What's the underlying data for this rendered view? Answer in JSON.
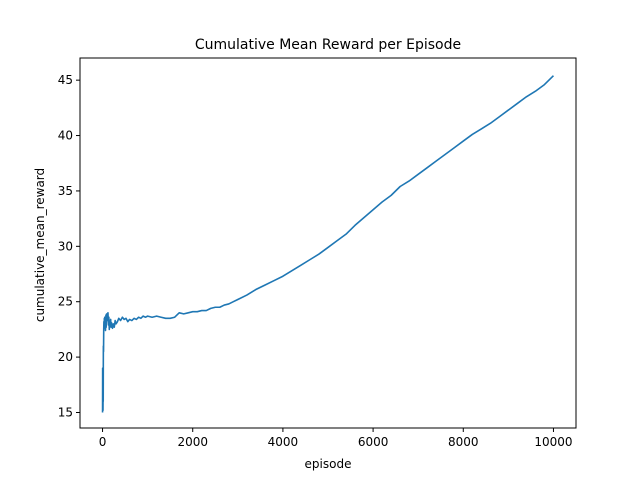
{
  "chart_data": {
    "type": "line",
    "title": "Cumulative Mean Reward per Episode",
    "xlabel": "episode",
    "ylabel": "cumulative_mean_reward",
    "xlim": [
      -500,
      10500
    ],
    "ylim": [
      13.6,
      47
    ],
    "xticks": [
      0,
      2000,
      4000,
      6000,
      8000,
      10000
    ],
    "yticks": [
      15,
      20,
      25,
      30,
      35,
      40,
      45
    ],
    "grid": false,
    "series": [
      {
        "color": "#1f77b4",
        "x": [
          0,
          2,
          4,
          6,
          8,
          10,
          12,
          15,
          18,
          22,
          26,
          30,
          35,
          40,
          45,
          50,
          55,
          60,
          65,
          70,
          75,
          80,
          90,
          100,
          110,
          120,
          130,
          140,
          150,
          160,
          170,
          180,
          190,
          200,
          220,
          240,
          260,
          280,
          300,
          330,
          360,
          400,
          440,
          480,
          520,
          560,
          600,
          650,
          700,
          750,
          800,
          850,
          900,
          950,
          1000,
          1100,
          1200,
          1300,
          1400,
          1500,
          1600,
          1700,
          1800,
          1900,
          2000,
          2100,
          2200,
          2300,
          2400,
          2500,
          2600,
          2700,
          2800,
          2900,
          3000,
          3200,
          3400,
          3600,
          3800,
          4000,
          4200,
          4400,
          4600,
          4800,
          5000,
          5200,
          5400,
          5600,
          5800,
          6000,
          6200,
          6400,
          6600,
          6800,
          7000,
          7200,
          7400,
          7600,
          7800,
          8000,
          8200,
          8400,
          8600,
          8800,
          9000,
          9200,
          9400,
          9600,
          9800,
          10000
        ],
        "y": [
          15.0,
          19.0,
          15.5,
          18.0,
          16.0,
          15.2,
          17.0,
          16.0,
          21.0,
          20.5,
          22.5,
          23.2,
          22.8,
          23.5,
          23.0,
          23.6,
          22.6,
          23.4,
          22.4,
          23.0,
          23.8,
          22.7,
          23.9,
          23.3,
          23.8,
          24.0,
          22.9,
          23.6,
          22.5,
          23.2,
          22.8,
          23.4,
          22.7,
          23.1,
          22.6,
          23.0,
          22.7,
          23.3,
          23.0,
          23.2,
          23.5,
          23.3,
          23.6,
          23.4,
          23.5,
          23.2,
          23.4,
          23.3,
          23.5,
          23.4,
          23.6,
          23.5,
          23.7,
          23.6,
          23.7,
          23.6,
          23.7,
          23.6,
          23.5,
          23.5,
          23.6,
          24.0,
          23.9,
          24.0,
          24.1,
          24.1,
          24.2,
          24.2,
          24.4,
          24.5,
          24.5,
          24.7,
          24.8,
          25.0,
          25.2,
          25.6,
          26.1,
          26.5,
          26.9,
          27.3,
          27.8,
          28.3,
          28.8,
          29.3,
          29.9,
          30.5,
          31.1,
          31.9,
          32.6,
          33.3,
          34.0,
          34.6,
          35.4,
          35.9,
          36.5,
          37.1,
          37.7,
          38.3,
          38.9,
          39.5,
          40.1,
          40.6,
          41.1,
          41.7,
          42.3,
          42.9,
          43.5,
          44.0,
          44.6,
          45.4
        ]
      }
    ]
  }
}
